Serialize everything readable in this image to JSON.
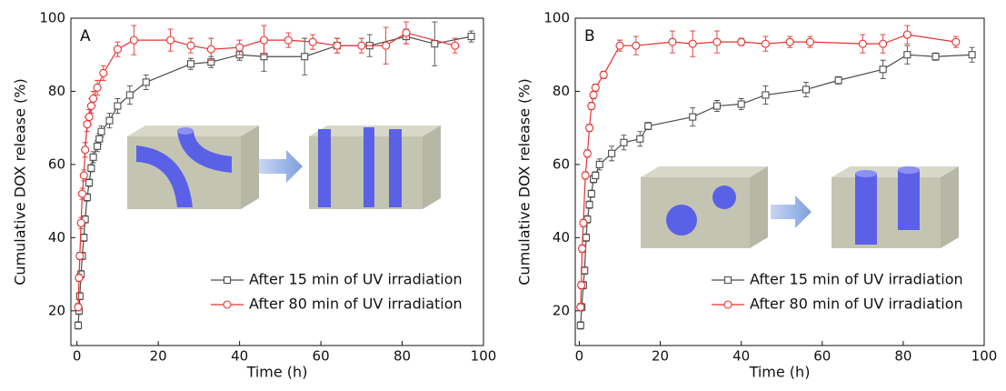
{
  "chart_data": [
    {
      "type": "line",
      "annotation": "A",
      "xlabel": "Time (h)",
      "ylabel": "Cumulative DOX release (%)",
      "xlim": [
        -1.5,
        100
      ],
      "ylim": [
        10.5,
        100
      ],
      "xticks": [
        0,
        20,
        40,
        60,
        80,
        100
      ],
      "yticks": [
        20,
        40,
        60,
        80,
        100
      ],
      "legend": "lower right",
      "series": [
        {
          "name": "After 15 min of UV irradiation",
          "color": "#4d4d4d",
          "marker": "square",
          "x": [
            0.3,
            0.5,
            0.7,
            1,
            1.3,
            1.7,
            2,
            2.5,
            3,
            3.5,
            4,
            5,
            5.5,
            6,
            8,
            10,
            13,
            17,
            28,
            33,
            40,
            46,
            56,
            64,
            72,
            81,
            88,
            97
          ],
          "values": [
            16,
            20,
            24,
            30,
            35,
            40,
            45,
            51,
            55,
            59,
            62,
            65,
            67,
            69,
            72,
            76,
            79,
            82.5,
            87.5,
            88,
            90,
            89.5,
            89.5,
            92.5,
            92.5,
            95,
            93,
            95
          ],
          "errors": [
            1,
            1,
            1,
            1,
            1,
            1,
            1,
            1,
            1,
            1,
            1.5,
            1.5,
            1.5,
            1.5,
            2,
            2,
            2.5,
            2,
            1.5,
            1.5,
            1.5,
            4,
            5,
            2,
            3,
            2,
            6,
            1.5
          ]
        },
        {
          "name": "After 80 min of UV irradiation",
          "color": "#e8312f",
          "marker": "circle",
          "x": [
            0.3,
            0.5,
            0.7,
            1,
            1.3,
            1.7,
            2,
            2.5,
            3,
            3.5,
            4,
            5,
            6.5,
            10,
            14,
            23,
            28,
            33,
            40,
            46,
            52,
            58,
            64,
            70,
            76,
            81,
            93
          ],
          "values": [
            21,
            29,
            35,
            44,
            52,
            57,
            64,
            71,
            73,
            76,
            78,
            81,
            85,
            91.5,
            94,
            94,
            92.5,
            91.5,
            92,
            94,
            94,
            93.5,
            92.5,
            92.5,
            92.5,
            96,
            92.5
          ],
          "errors": [
            1,
            1,
            1,
            1.5,
            1.5,
            1.5,
            2,
            2,
            2,
            2,
            2,
            2,
            2,
            2,
            4,
            3,
            2,
            3,
            2,
            4,
            2,
            2,
            2,
            2,
            5,
            3,
            2
          ]
        }
      ]
    },
    {
      "type": "line",
      "annotation": "B",
      "xlabel": "Time (h)",
      "ylabel": "Cumulative DOX release (%)",
      "xlim": [
        -1,
        100
      ],
      "ylim": [
        10.5,
        100
      ],
      "xticks": [
        0,
        20,
        40,
        60,
        80,
        100
      ],
      "yticks": [
        20,
        40,
        60,
        80,
        100
      ],
      "legend": "lower right",
      "series": [
        {
          "name": "After 15 min of UV irradiation",
          "color": "#4d4d4d",
          "marker": "square",
          "x": [
            0.3,
            0.6,
            1,
            1.3,
            1.7,
            2,
            2.5,
            3,
            3.5,
            4,
            5,
            8,
            11,
            15,
            17,
            28,
            34,
            40,
            46,
            56,
            64,
            75,
            81,
            88,
            97
          ],
          "values": [
            16,
            21,
            27,
            31,
            40,
            45,
            49,
            52,
            56,
            57,
            60,
            63,
            66,
            67,
            70.5,
            73,
            76,
            76.5,
            79,
            80.5,
            83,
            86,
            90,
            89.5,
            90
          ],
          "errors": [
            1,
            1,
            1,
            1,
            1,
            1,
            1,
            1,
            1,
            1,
            1.5,
            2,
            2,
            2,
            1,
            2.5,
            1.5,
            1.5,
            2.5,
            2,
            1,
            2.5,
            2.5,
            1,
            2
          ]
        },
        {
          "name": "After 80 min of UV irradiation",
          "color": "#e8312f",
          "marker": "circle",
          "x": [
            0.3,
            0.5,
            0.7,
            1,
            1.5,
            2,
            2.5,
            3,
            3.5,
            4,
            6,
            10,
            14,
            23,
            28,
            34,
            40,
            46,
            52,
            57,
            70,
            75,
            81,
            93
          ],
          "values": [
            21,
            27,
            37,
            44,
            57,
            63,
            70,
            76,
            79,
            81,
            84.5,
            92.5,
            92.5,
            93.5,
            93,
            93.5,
            93.5,
            93,
            93.5,
            93.5,
            93,
            93,
            95.5,
            93.5
          ],
          "errors": [
            1,
            1,
            1,
            1,
            1,
            1,
            1,
            1,
            1,
            1,
            1,
            1.5,
            2.5,
            3,
            3.5,
            3,
            1,
            2,
            1.5,
            1.5,
            2.5,
            2.5,
            2.5,
            1.5
          ]
        }
      ]
    }
  ]
}
